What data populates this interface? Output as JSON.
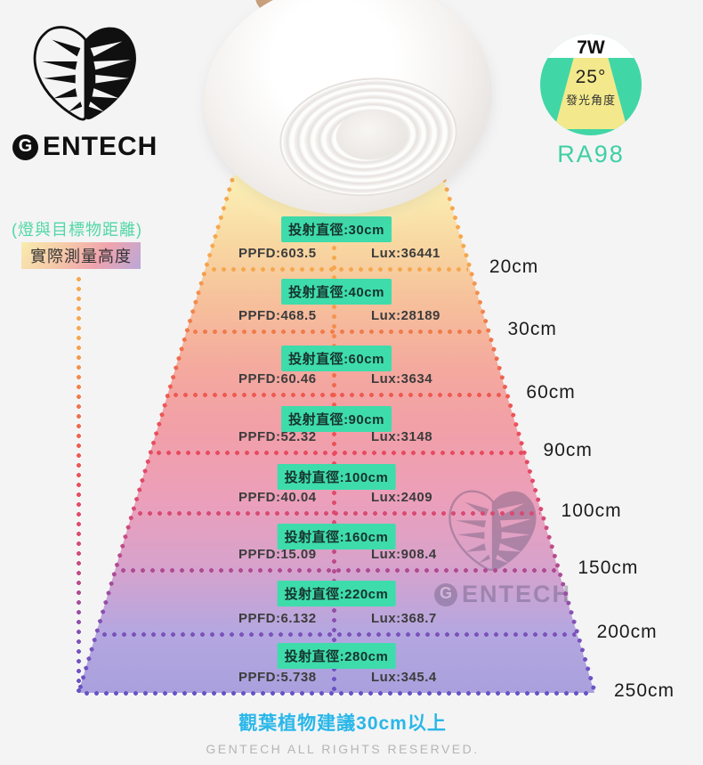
{
  "brand": {
    "logo_g": "G",
    "logo_rest": "ENTECH",
    "name": "GENTECH"
  },
  "spec_badge": {
    "wattage": "7W",
    "beam_angle": "25°",
    "beam_angle_label": "發光角度",
    "cri": "RA98"
  },
  "legend": {
    "distance_note": "(燈與目標物距離)",
    "height_label": "實際測量高度"
  },
  "rows": [
    {
      "diameter": "投射直徑:30cm",
      "ppfd": "PPFD:603.5",
      "lux": "Lux:36441",
      "distance": "20cm"
    },
    {
      "diameter": "投射直徑:40cm",
      "ppfd": "PPFD:468.5",
      "lux": "Lux:28189",
      "distance": "30cm"
    },
    {
      "diameter": "投射直徑:60cm",
      "ppfd": "PPFD:60.46",
      "lux": "Lux:3634",
      "distance": "60cm"
    },
    {
      "diameter": "投射直徑:90cm",
      "ppfd": "PPFD:52.32",
      "lux": "Lux:3148",
      "distance": "90cm"
    },
    {
      "diameter": "投射直徑:100cm",
      "ppfd": "PPFD:40.04",
      "lux": "Lux:2409",
      "distance": "100cm"
    },
    {
      "diameter": "投射直徑:160cm",
      "ppfd": "PPFD:15.09",
      "lux": "Lux:908.4",
      "distance": "150cm"
    },
    {
      "diameter": "投射直徑:220cm",
      "ppfd": "PPFD:6.132",
      "lux": "Lux:368.7",
      "distance": "200cm"
    },
    {
      "diameter": "投射直徑:280cm",
      "ppfd": "PPFD:5.738",
      "lux": "Lux:345.4",
      "distance": "250cm"
    }
  ],
  "footer": {
    "recommendation": "觀葉植物建議30cm以上",
    "copyright": "GENTECH ALL RIGHTS RESERVED."
  },
  "colors": {
    "badge_teal": "#3edcab",
    "circle_teal": "#41d6a6",
    "trapezoid_yellow": "#f3e98c",
    "cri_teal": "#3fcfa5",
    "note_green": "#50d7a6",
    "footer_blue": "#29b7e8",
    "dot_colors": [
      "#f6a74e",
      "#f07b4b",
      "#ee5a50",
      "#e84a5f",
      "#d94a72",
      "#b04a92",
      "#7b52ba",
      "#6852c6"
    ],
    "cone_gradient": [
      "#fbf2b8",
      "#f8d8a1",
      "#f6bf9b",
      "#f4a89e",
      "#f19fa9",
      "#eb9fba",
      "#d8a2cb",
      "#b5a7e0",
      "#a9a0dd"
    ]
  }
}
